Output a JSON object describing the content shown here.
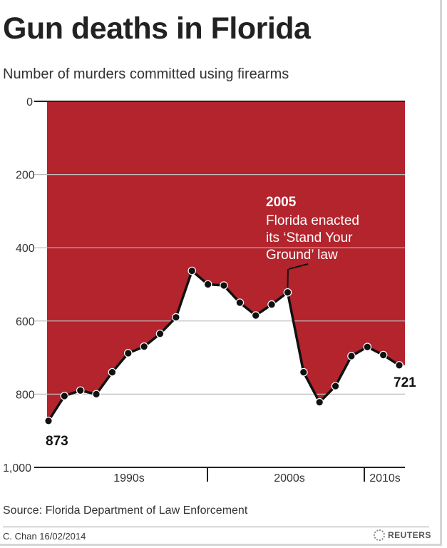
{
  "header": {
    "title": "Gun deaths in Florida",
    "subtitle": "Number of murders committed using firearms"
  },
  "footer": {
    "source": "Source: Florida Department of Law Enforcement",
    "credit": "C. Chan  16/02/2014",
    "brand": "REUTERS",
    "brand_icon": "reuters-logo-icon"
  },
  "colors": {
    "fill": "#b3242d",
    "line": "#111111",
    "grid": "#bdbdbd",
    "axis": "#222222"
  },
  "chart_data": {
    "type": "area",
    "title": "Gun deaths in Florida",
    "subtitle": "Number of murders committed using firearms",
    "y_inverted": true,
    "ylim": [
      0,
      1000
    ],
    "yticks": [
      0,
      200,
      400,
      600,
      800,
      1000
    ],
    "ytick_labels": [
      "0",
      "200",
      "400",
      "600",
      "800",
      "1,000"
    ],
    "x_periods": [
      "1990s",
      "2000s",
      "2010s"
    ],
    "x": [
      1990,
      1991,
      1992,
      1993,
      1994,
      1995,
      1996,
      1997,
      1998,
      1999,
      2000,
      2001,
      2002,
      2003,
      2004,
      2005,
      2006,
      2007,
      2008,
      2009,
      2010,
      2011,
      2012
    ],
    "values": [
      873,
      805,
      790,
      800,
      740,
      688,
      670,
      635,
      590,
      463,
      500,
      503,
      550,
      585,
      555,
      522,
      740,
      822,
      778,
      696,
      671,
      693,
      721
    ],
    "annotations": [
      {
        "year": "2005",
        "text": "Florida enacted its ‘Stand Your Ground’ law",
        "lines": [
          "Florida enacted",
          "its ‘Stand Your",
          "Ground’ law"
        ]
      },
      {
        "label": "873"
      },
      {
        "label": "721"
      }
    ],
    "grid": true
  }
}
